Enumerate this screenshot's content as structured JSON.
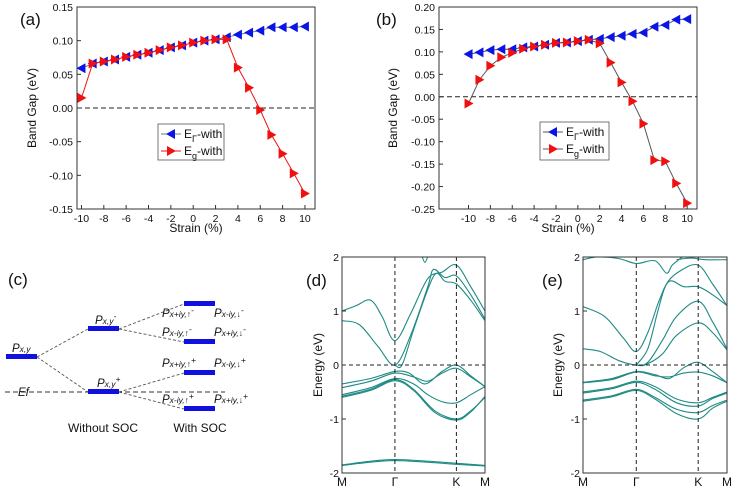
{
  "chart_data": [
    {
      "panel": "(a)",
      "type": "line",
      "xlabel": "Strain (%)",
      "ylabel": "Band Gap (eV)",
      "xlim": [
        -10.4,
        10.9
      ],
      "ylim": [
        -0.15,
        0.15
      ],
      "xticks": [
        -10,
        -8,
        -6,
        -4,
        -2,
        0,
        2,
        4,
        6,
        8,
        10
      ],
      "yticks": [
        "0.15",
        "0.10",
        "0.05",
        "0.00",
        "-0.05",
        "-0.10",
        "-0.15"
      ],
      "reference_line": 0,
      "legend_placement": "center",
      "x": [
        -10,
        -9,
        -8,
        -7,
        -6,
        -5,
        -4,
        -3,
        -2,
        -1,
        0,
        1,
        2,
        3,
        4,
        5,
        6,
        7,
        8,
        9,
        10
      ],
      "series": [
        {
          "name_main": "E",
          "name_sub": "Γ",
          "name_rest": "-with",
          "marker": "left-triangle",
          "color": "#0a14e6",
          "line_color": "#777777",
          "values": [
            0.059,
            0.066,
            0.069,
            0.072,
            0.076,
            0.079,
            0.082,
            0.086,
            0.09,
            0.093,
            0.097,
            0.1,
            0.102,
            0.105,
            0.109,
            0.112,
            0.115,
            0.12,
            0.12,
            0.12,
            0.121
          ]
        },
        {
          "name_main": "E",
          "name_sub": "g",
          "name_rest": "-with",
          "marker": "right-triangle",
          "color": "#f01010",
          "line_color": "#f01010",
          "values": [
            0.015,
            0.066,
            0.069,
            0.072,
            0.076,
            0.079,
            0.082,
            0.086,
            0.09,
            0.093,
            0.097,
            0.1,
            0.102,
            0.102,
            0.06,
            0.03,
            -0.003,
            -0.04,
            -0.068,
            -0.097,
            -0.127
          ]
        }
      ]
    },
    {
      "panel": "(b)",
      "type": "line",
      "xlabel": "Strain (%)",
      "ylabel": "Band Gap (eV)",
      "xlim": [
        -12.7,
        10.9
      ],
      "ylim": [
        -0.25,
        0.2
      ],
      "xticks": [
        -10,
        -8,
        -6,
        -4,
        -2,
        0,
        2,
        4,
        6,
        8,
        10
      ],
      "yticks": [
        "0.20",
        "0.15",
        "0.10",
        "0.05",
        "0.00",
        "-0.05",
        "-0.10",
        "-0.15",
        "-0.20",
        "-0.25"
      ],
      "reference_line": 0,
      "legend_placement": "center",
      "x": [
        -10,
        -9,
        -8,
        -7,
        -6,
        -5,
        -4,
        -3,
        -2,
        -1,
        0,
        1,
        2,
        3,
        4,
        5,
        6,
        7,
        8,
        9,
        10
      ],
      "series": [
        {
          "name_main": "E",
          "name_sub": "Γ",
          "name_rest": "-with",
          "marker": "left-triangle",
          "color": "#0a14e6",
          "line_color": "#555555",
          "values": [
            0.095,
            0.099,
            0.104,
            0.106,
            0.106,
            0.11,
            0.112,
            0.116,
            0.12,
            0.121,
            0.124,
            0.127,
            0.129,
            0.133,
            0.136,
            0.14,
            0.143,
            0.156,
            0.16,
            0.172,
            0.173
          ]
        },
        {
          "name_main": "E",
          "name_sub": "g",
          "name_rest": "-with",
          "marker": "right-triangle",
          "color": "#f01010",
          "line_color": "#555555",
          "values": [
            -0.015,
            0.038,
            0.069,
            0.088,
            0.098,
            0.107,
            0.112,
            0.116,
            0.12,
            0.121,
            0.124,
            0.127,
            0.119,
            0.076,
            0.032,
            -0.01,
            -0.06,
            -0.141,
            -0.144,
            -0.193,
            -0.237
          ]
        }
      ]
    },
    {
      "panel": "(d)",
      "type": "line",
      "ylabel": "Energy (eV)",
      "ylim": [
        -2,
        2
      ],
      "yticks": [
        "2",
        "1",
        "0",
        "-1",
        "-2"
      ],
      "xticks": [
        {
          "label": "M",
          "k": 0
        },
        {
          "label": "Γ",
          "k": 0.37
        },
        {
          "label": "K",
          "k": 0.8
        },
        {
          "label": "M",
          "k": 1
        }
      ],
      "line_color": "#1e8a84",
      "bands": [
        [
          [
            0,
            1.0
          ],
          [
            0.1,
            1.1
          ],
          [
            0.2,
            1.2
          ],
          [
            0.28,
            0.9
          ],
          [
            0.37,
            0.45
          ],
          [
            0.48,
            0.95
          ],
          [
            0.6,
            1.6
          ],
          [
            0.7,
            1.72
          ],
          [
            0.8,
            1.85
          ],
          [
            0.9,
            1.45
          ],
          [
            1,
            1.0
          ]
        ],
        [
          [
            0,
            0.82
          ],
          [
            0.12,
            0.75
          ],
          [
            0.25,
            0.35
          ],
          [
            0.37,
            0.0
          ],
          [
            0.48,
            0.55
          ],
          [
            0.6,
            1.45
          ],
          [
            0.64,
            1.77
          ],
          [
            0.72,
            1.62
          ],
          [
            0.8,
            1.65
          ],
          [
            0.9,
            1.3
          ],
          [
            1,
            0.85
          ]
        ],
        [
          [
            0.37,
            0.0
          ],
          [
            0.42,
            0.0
          ],
          [
            0.5,
            0.65
          ],
          [
            0.6,
            1.4
          ],
          [
            0.66,
            1.7
          ],
          [
            0.72,
            1.55
          ],
          [
            0.8,
            1.5
          ],
          [
            0.9,
            1.2
          ],
          [
            1,
            0.82
          ]
        ],
        [
          [
            0.55,
            2.1
          ],
          [
            0.58,
            1.9
          ],
          [
            0.61,
            2.1
          ]
        ],
        [
          [
            0,
            -0.35
          ],
          [
            0.2,
            -0.25
          ],
          [
            0.37,
            -0.12
          ],
          [
            0.47,
            -0.15
          ],
          [
            0.58,
            -0.35
          ],
          [
            0.7,
            -0.12
          ],
          [
            0.8,
            0.0
          ],
          [
            0.9,
            -0.2
          ],
          [
            1,
            -0.4
          ]
        ],
        [
          [
            0,
            -0.42
          ],
          [
            0.2,
            -0.3
          ],
          [
            0.37,
            -0.15
          ],
          [
            0.5,
            -0.22
          ],
          [
            0.6,
            -0.3
          ],
          [
            0.7,
            -0.15
          ],
          [
            0.8,
            -0.06
          ],
          [
            0.9,
            -0.22
          ],
          [
            1,
            -0.4
          ]
        ],
        [
          [
            0,
            -0.55
          ],
          [
            0.2,
            -0.42
          ],
          [
            0.37,
            -0.25
          ],
          [
            0.5,
            -0.35
          ],
          [
            0.6,
            -0.55
          ],
          [
            0.7,
            -0.68
          ],
          [
            0.8,
            -0.7
          ],
          [
            0.9,
            -0.55
          ],
          [
            1,
            -0.4
          ]
        ],
        [
          [
            0,
            -0.58
          ],
          [
            0.2,
            -0.45
          ],
          [
            0.37,
            -0.27
          ],
          [
            0.5,
            -0.45
          ],
          [
            0.65,
            -0.85
          ],
          [
            0.8,
            -1.0
          ],
          [
            0.9,
            -0.85
          ],
          [
            1,
            -0.6
          ]
        ],
        [
          [
            0,
            -0.6
          ],
          [
            0.2,
            -0.47
          ],
          [
            0.37,
            -0.29
          ],
          [
            0.5,
            -0.47
          ],
          [
            0.65,
            -0.88
          ],
          [
            0.8,
            -1.02
          ],
          [
            0.9,
            -0.87
          ],
          [
            1,
            -0.58
          ]
        ],
        [
          [
            0,
            -1.85
          ],
          [
            0.2,
            -1.78
          ],
          [
            0.37,
            -1.75
          ],
          [
            0.6,
            -1.78
          ],
          [
            0.8,
            -1.82
          ],
          [
            1,
            -1.86
          ]
        ],
        [
          [
            0,
            -1.86
          ],
          [
            0.2,
            -1.8
          ],
          [
            0.37,
            -1.77
          ],
          [
            0.6,
            -1.8
          ],
          [
            0.8,
            -1.84
          ],
          [
            1,
            -1.87
          ]
        ]
      ]
    },
    {
      "panel": "(e)",
      "type": "line",
      "ylabel": "Energy (eV)",
      "ylim": [
        -2,
        2
      ],
      "yticks": [
        "2",
        "1",
        "0",
        "-1",
        "-2"
      ],
      "xticks": [
        {
          "label": "M",
          "k": 0
        },
        {
          "label": "Γ",
          "k": 0.37
        },
        {
          "label": "K",
          "k": 0.8
        },
        {
          "label": "M",
          "k": 1
        }
      ],
      "line_color": "#1e8a84",
      "bands": [
        [
          [
            0,
            1.95
          ],
          [
            0.1,
            2.0
          ],
          [
            0.25,
            1.97
          ],
          [
            0.37,
            1.88
          ],
          [
            0.5,
            1.93
          ],
          [
            0.58,
            1.7
          ],
          [
            0.62,
            1.85
          ],
          [
            0.7,
            2.02
          ]
        ],
        [
          [
            0.65,
            1.95
          ],
          [
            0.75,
            1.98
          ],
          [
            0.85,
            1.95
          ],
          [
            1,
            1.95
          ]
        ],
        [
          [
            0,
            1.08
          ],
          [
            0.15,
            0.9
          ],
          [
            0.28,
            0.5
          ],
          [
            0.37,
            0.25
          ],
          [
            0.45,
            0.6
          ],
          [
            0.53,
            1.2
          ],
          [
            0.6,
            1.55
          ],
          [
            0.7,
            1.45
          ],
          [
            0.8,
            1.45
          ],
          [
            0.9,
            1.3
          ],
          [
            1,
            1.1
          ]
        ],
        [
          [
            0.37,
            0.0
          ],
          [
            0.45,
            0.3
          ],
          [
            0.52,
            1.0
          ],
          [
            0.58,
            1.5
          ],
          [
            0.68,
            1.75
          ],
          [
            0.8,
            1.85
          ],
          [
            0.9,
            1.5
          ],
          [
            1,
            1.1
          ]
        ],
        [
          [
            0,
            0.3
          ],
          [
            0.12,
            0.25
          ],
          [
            0.25,
            0.08
          ],
          [
            0.37,
            0.0
          ],
          [
            0.45,
            0.05
          ],
          [
            0.55,
            0.45
          ],
          [
            0.65,
            0.9
          ],
          [
            0.8,
            1.18
          ],
          [
            0.9,
            0.8
          ],
          [
            1,
            0.3
          ]
        ],
        [
          [
            0.37,
            0.0
          ],
          [
            0.43,
            0.0
          ],
          [
            0.55,
            0.2
          ],
          [
            0.65,
            0.55
          ],
          [
            0.8,
            0.78
          ],
          [
            0.9,
            0.6
          ],
          [
            1,
            0.28
          ]
        ],
        [
          [
            0,
            -0.32
          ],
          [
            0.2,
            -0.25
          ],
          [
            0.37,
            -0.12
          ],
          [
            0.5,
            -0.18
          ],
          [
            0.6,
            -0.25
          ],
          [
            0.7,
            -0.05
          ],
          [
            0.8,
            0.05
          ],
          [
            0.9,
            -0.12
          ],
          [
            1,
            -0.33
          ]
        ],
        [
          [
            0,
            -0.33
          ],
          [
            0.2,
            -0.27
          ],
          [
            0.37,
            -0.13
          ],
          [
            0.5,
            -0.2
          ],
          [
            0.6,
            -0.22
          ],
          [
            0.7,
            -0.15
          ],
          [
            0.8,
            -0.13
          ],
          [
            0.9,
            -0.2
          ],
          [
            1,
            -0.33
          ]
        ],
        [
          [
            0,
            -0.5
          ],
          [
            0.2,
            -0.42
          ],
          [
            0.37,
            -0.3
          ],
          [
            0.5,
            -0.4
          ],
          [
            0.65,
            -0.63
          ],
          [
            0.8,
            -0.7
          ],
          [
            0.9,
            -0.6
          ],
          [
            1,
            -0.5
          ]
        ],
        [
          [
            0,
            -0.52
          ],
          [
            0.2,
            -0.44
          ],
          [
            0.37,
            -0.32
          ],
          [
            0.5,
            -0.45
          ],
          [
            0.65,
            -0.7
          ],
          [
            0.8,
            -0.76
          ],
          [
            0.9,
            -0.62
          ],
          [
            1,
            -0.52
          ]
        ],
        [
          [
            0,
            -0.65
          ],
          [
            0.2,
            -0.57
          ],
          [
            0.37,
            -0.45
          ],
          [
            0.5,
            -0.6
          ],
          [
            0.65,
            -0.82
          ],
          [
            0.8,
            -0.88
          ],
          [
            0.9,
            -0.75
          ],
          [
            1,
            -0.65
          ]
        ],
        [
          [
            0,
            -0.67
          ],
          [
            0.2,
            -0.59
          ],
          [
            0.37,
            -0.47
          ],
          [
            0.5,
            -0.63
          ],
          [
            0.65,
            -0.9
          ],
          [
            0.8,
            -1.0
          ],
          [
            0.9,
            -0.8
          ],
          [
            1,
            -0.67
          ]
        ]
      ]
    }
  ],
  "diagram_c": {
    "panel": "(c)",
    "bar_color": "#1010e0",
    "labels": {
      "pxy": {
        "base": "P",
        "sub": "x,y",
        "sup": ""
      },
      "pxy_minus": {
        "base": "P",
        "sub": "x,y",
        "sup": "-"
      },
      "pxy_plus": {
        "base": "P",
        "sub": "x,y",
        "sup": "+"
      },
      "s1a": {
        "base": "P",
        "sub": "x+iy,↑",
        "sup": "-"
      },
      "s1b": {
        "base": "P",
        "sub": "x-iy,↓",
        "sup": "-"
      },
      "s2a": {
        "base": "P",
        "sub": "x-iy,↑",
        "sup": "-"
      },
      "s2b": {
        "base": "P",
        "sub": "x+iy,↓",
        "sup": "-"
      },
      "s3a": {
        "base": "P",
        "sub": "x+iy,↑",
        "sup": "+"
      },
      "s3b": {
        "base": "P",
        "sub": "x-iy,↓",
        "sup": "+"
      },
      "s4a": {
        "base": "P",
        "sub": "x-iy,↑",
        "sup": "+"
      },
      "s4b": {
        "base": "P",
        "sub": "x+iy,↓",
        "sup": "+"
      }
    },
    "fermi_label": "Ef",
    "without_soc": "Without SOC",
    "with_soc": "With SOC"
  }
}
